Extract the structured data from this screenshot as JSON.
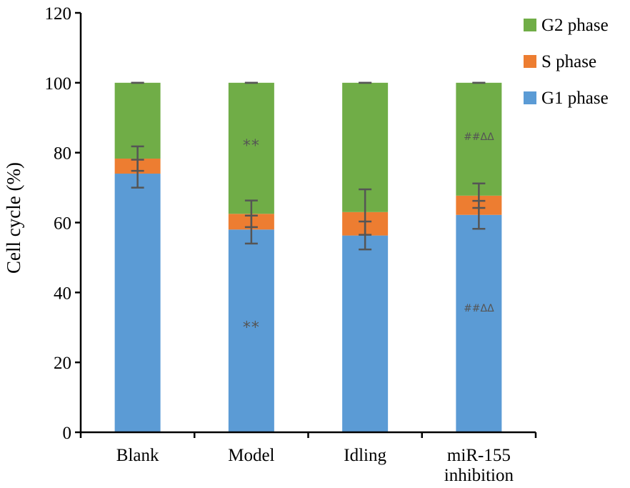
{
  "chart_data": {
    "type": "bar",
    "stacked": true,
    "ylabel": "Cell cycle (%)",
    "xlabel": "",
    "ylim": [
      0,
      120
    ],
    "yticks": [
      "0",
      "20",
      "40",
      "60",
      "80",
      "100",
      "120"
    ],
    "grid": false,
    "legend_position": "top-right",
    "categories": [
      "Blank",
      "Model",
      "Idling",
      "miR-155 inhibition"
    ],
    "category_lines": [
      [
        "Blank"
      ],
      [
        "Model"
      ],
      [
        "Idling"
      ],
      [
        "miR-155",
        "inhibition"
      ]
    ],
    "series": [
      {
        "name": "G1 phase",
        "color": "#5b9bd5",
        "values": [
          74,
          58,
          56.3,
          62.2
        ],
        "error": [
          4,
          4,
          4,
          4
        ]
      },
      {
        "name": "S phase",
        "color": "#ed7d31",
        "values": [
          4.3,
          4.5,
          6.7,
          5.5
        ],
        "error": [
          3.5,
          3.8,
          6.5,
          3.5
        ]
      },
      {
        "name": "G2 phase",
        "color": "#70ad47",
        "values": [
          21.7,
          37.5,
          37,
          32.3
        ],
        "error": [
          0,
          0,
          0,
          0
        ]
      }
    ],
    "legend_order": [
      "G2 phase",
      "S phase",
      "G1 phase"
    ],
    "annotations": [
      {
        "category": "Model",
        "value": 82,
        "text": "**",
        "size": "big"
      },
      {
        "category": "Model",
        "value": 30,
        "text": "**",
        "size": "big"
      },
      {
        "category": "miR-155 inhibition",
        "value": 85,
        "text": "##ΔΔ",
        "size": "small"
      },
      {
        "category": "miR-155 inhibition",
        "value": 36,
        "text": "##ΔΔ",
        "size": "small"
      }
    ]
  }
}
